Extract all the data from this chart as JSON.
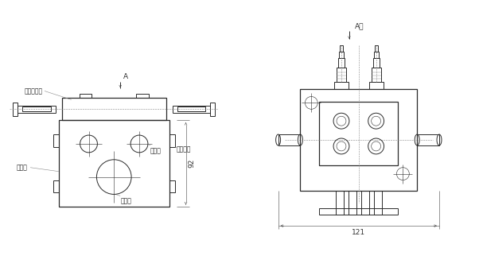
{
  "bg_color": "#ffffff",
  "line_color": "#2a2a2a",
  "dash_color": "#888888",
  "dim_color": "#444444",
  "font_size_label": 5.5,
  "font_size_dim": 6.5,
  "left_view": {
    "label_shuang": "双线分配器",
    "label_hun": "混合块",
    "label_jinyou": "进油口",
    "label_jinqi": "进气口",
    "label_youqi": "油气出口",
    "dim_92": "92"
  },
  "right_view": {
    "label_A": "A向",
    "dim_121": "121"
  }
}
